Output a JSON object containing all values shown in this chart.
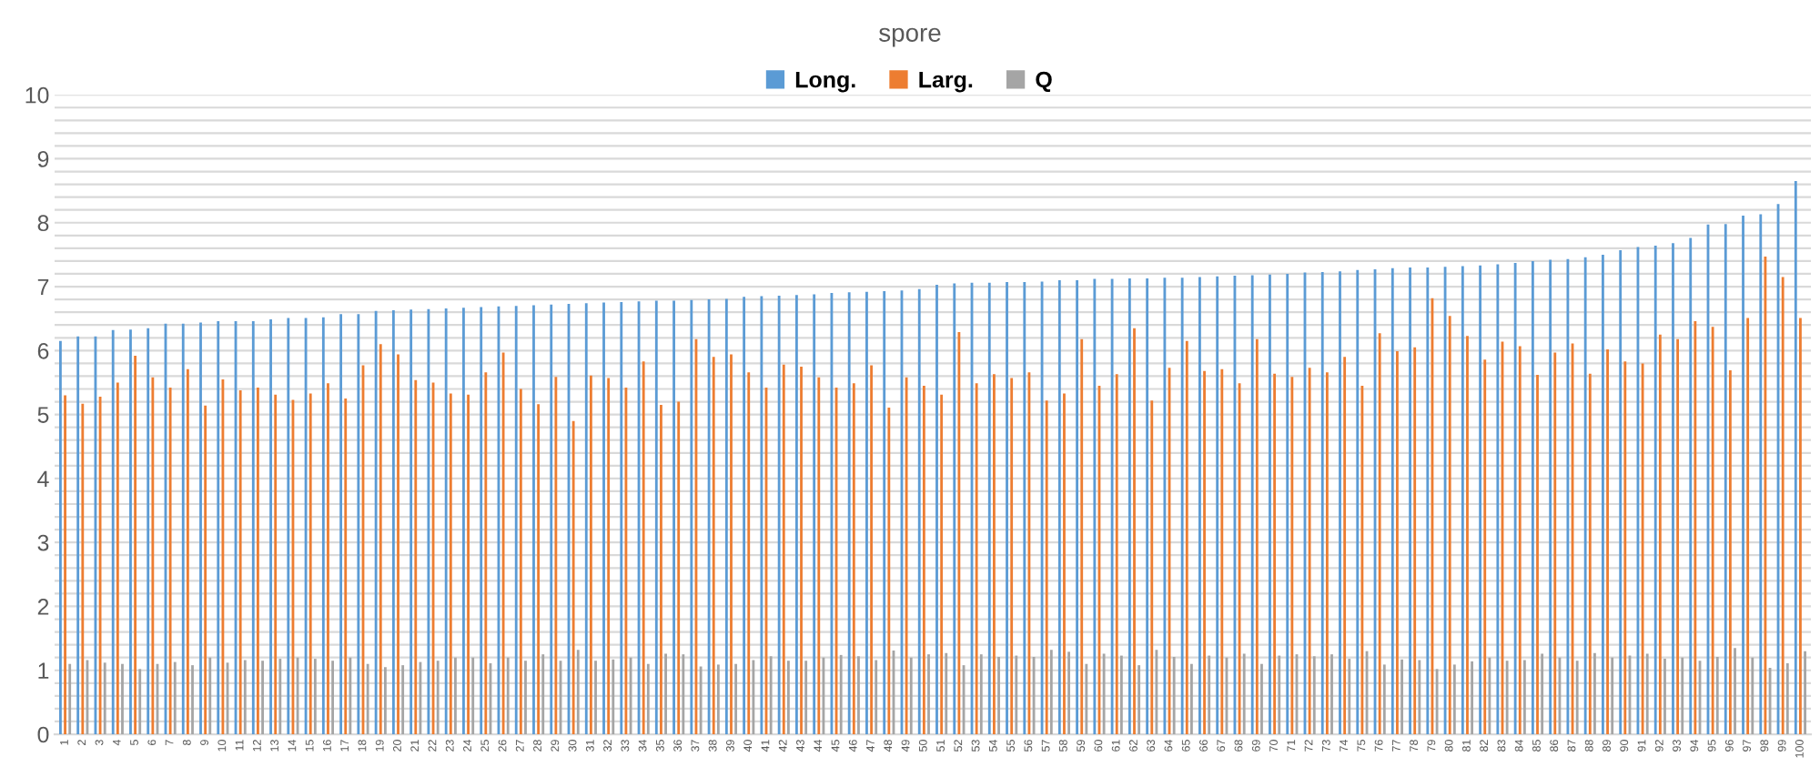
{
  "chart_data": {
    "type": "bar",
    "title": "spore",
    "categories": [
      "1",
      "2",
      "3",
      "4",
      "5",
      "6",
      "7",
      "8",
      "9",
      "10",
      "11",
      "12",
      "13",
      "14",
      "15",
      "16",
      "17",
      "18",
      "19",
      "20",
      "21",
      "22",
      "23",
      "24",
      "25",
      "26",
      "27",
      "28",
      "29",
      "30",
      "31",
      "32",
      "33",
      "34",
      "35",
      "36",
      "37",
      "38",
      "39",
      "40",
      "41",
      "42",
      "43",
      "44",
      "45",
      "46",
      "47",
      "48",
      "49",
      "50",
      "51",
      "52",
      "53",
      "54",
      "55",
      "56",
      "57",
      "58",
      "59",
      "60",
      "61",
      "62",
      "63",
      "64",
      "65",
      "66",
      "67",
      "68",
      "69",
      "70",
      "71",
      "72",
      "73",
      "74",
      "75",
      "76",
      "77",
      "78",
      "79",
      "80",
      "81",
      "82",
      "83",
      "84",
      "85",
      "86",
      "87",
      "88",
      "89",
      "90",
      "91",
      "92",
      "93",
      "94",
      "95",
      "96",
      "97",
      "98",
      "99",
      "100"
    ],
    "series": [
      {
        "name": "Long.",
        "color": "#5b9bd5",
        "values": [
          6.15,
          6.22,
          6.22,
          6.32,
          6.33,
          6.35,
          6.42,
          6.42,
          6.44,
          6.46,
          6.46,
          6.46,
          6.49,
          6.51,
          6.51,
          6.52,
          6.57,
          6.57,
          6.62,
          6.63,
          6.64,
          6.65,
          6.66,
          6.67,
          6.68,
          6.69,
          6.7,
          6.71,
          6.72,
          6.73,
          6.74,
          6.75,
          6.76,
          6.77,
          6.78,
          6.78,
          6.79,
          6.8,
          6.81,
          6.84,
          6.85,
          6.86,
          6.87,
          6.88,
          6.9,
          6.91,
          6.92,
          6.93,
          6.94,
          6.96,
          7.03,
          7.05,
          7.06,
          7.06,
          7.07,
          7.07,
          7.08,
          7.1,
          7.1,
          7.12,
          7.12,
          7.13,
          7.13,
          7.14,
          7.14,
          7.15,
          7.16,
          7.17,
          7.18,
          7.19,
          7.2,
          7.22,
          7.23,
          7.24,
          7.26,
          7.27,
          7.29,
          7.3,
          7.3,
          7.31,
          7.32,
          7.33,
          7.35,
          7.37,
          7.4,
          7.42,
          7.43,
          7.46,
          7.5,
          7.57,
          7.62,
          7.64,
          7.68,
          7.76,
          7.97,
          7.98,
          8.11,
          8.13,
          8.29,
          8.65
        ]
      },
      {
        "name": "Larg.",
        "color": "#ed7d31",
        "values": [
          5.3,
          5.17,
          5.28,
          5.5,
          5.92,
          5.58,
          5.42,
          5.71,
          5.14,
          5.55,
          5.38,
          5.42,
          5.31,
          5.23,
          5.33,
          5.49,
          5.25,
          5.77,
          6.1,
          5.94,
          5.54,
          5.5,
          5.33,
          5.31,
          5.66,
          5.97,
          5.4,
          5.16,
          5.59,
          4.9,
          5.61,
          5.57,
          5.42,
          5.83,
          5.15,
          5.2,
          6.18,
          5.9,
          5.94,
          5.66,
          5.42,
          5.78,
          5.75,
          5.58,
          5.42,
          5.49,
          5.77,
          5.11,
          5.58,
          5.45,
          5.31,
          6.29,
          5.49,
          5.63,
          5.57,
          5.66,
          5.22,
          5.33,
          6.18,
          5.45,
          5.63,
          6.35,
          5.22,
          5.73,
          6.15,
          5.68,
          5.71,
          5.49,
          6.18,
          5.64,
          5.59,
          5.73,
          5.66,
          5.9,
          5.45,
          6.27,
          5.99,
          6.05,
          6.82,
          6.54,
          6.23,
          5.86,
          6.14,
          6.07,
          5.62,
          5.97,
          6.11,
          5.64,
          6.02,
          5.83,
          5.8,
          6.25,
          6.18,
          6.46,
          6.37,
          5.69,
          6.51,
          7.47,
          7.15,
          6.51
        ]
      },
      {
        "name": "Q",
        "color": "#a5a5a5",
        "values": [
          1.1,
          1.16,
          1.12,
          1.1,
          1.02,
          1.1,
          1.13,
          1.08,
          1.2,
          1.12,
          1.16,
          1.15,
          1.18,
          1.2,
          1.18,
          1.15,
          1.2,
          1.1,
          1.05,
          1.08,
          1.13,
          1.15,
          1.2,
          1.2,
          1.11,
          1.2,
          1.15,
          1.25,
          1.15,
          1.32,
          1.15,
          1.17,
          1.2,
          1.1,
          1.26,
          1.25,
          1.06,
          1.09,
          1.1,
          1.16,
          1.22,
          1.15,
          1.15,
          1.2,
          1.24,
          1.22,
          1.16,
          1.31,
          1.2,
          1.25,
          1.27,
          1.08,
          1.25,
          1.21,
          1.23,
          1.21,
          1.32,
          1.29,
          1.1,
          1.26,
          1.23,
          1.08,
          1.32,
          1.21,
          1.1,
          1.23,
          1.2,
          1.26,
          1.1,
          1.23,
          1.25,
          1.22,
          1.25,
          1.18,
          1.3,
          1.09,
          1.17,
          1.16,
          1.02,
          1.09,
          1.14,
          1.2,
          1.15,
          1.16,
          1.26,
          1.2,
          1.15,
          1.27,
          1.2,
          1.23,
          1.26,
          1.18,
          1.2,
          1.15,
          1.21,
          1.35,
          1.2,
          1.04,
          1.11,
          1.3
        ]
      }
    ],
    "ylim": [
      0,
      10
    ],
    "yticks": [
      0,
      {
        "value": 0.2,
        "label": null
      },
      {
        "value": 0.4,
        "label": null
      },
      {
        "value": 0.6,
        "label": null
      },
      {
        "value": 0.8,
        "label": null
      },
      1,
      {
        "value": 1.2,
        "label": null
      },
      {
        "value": 1.4,
        "label": null
      },
      {
        "value": 1.6,
        "label": null
      },
      {
        "value": 1.8,
        "label": null
      },
      2,
      {
        "value": 2.2,
        "label": null
      },
      {
        "value": 2.4,
        "label": null
      },
      {
        "value": 2.6,
        "label": null
      },
      {
        "value": 2.8,
        "label": null
      },
      3,
      {
        "value": 3.2,
        "label": null
      },
      {
        "value": 3.4,
        "label": null
      },
      {
        "value": 3.6,
        "label": null
      },
      {
        "value": 3.8,
        "label": null
      },
      4,
      {
        "value": 4.2,
        "label": null
      },
      {
        "value": 4.4,
        "label": null
      },
      {
        "value": 4.6,
        "label": null
      },
      {
        "value": 4.8,
        "label": null
      },
      5,
      {
        "value": 5.2,
        "label": null
      },
      {
        "value": 5.4,
        "label": null
      },
      {
        "value": 5.6,
        "label": null
      },
      {
        "value": 5.8,
        "label": null
      },
      6,
      {
        "value": 6.2,
        "label": null
      },
      {
        "value": 6.4,
        "label": null
      },
      {
        "value": 6.6,
        "label": null
      },
      {
        "value": 6.8,
        "label": null
      },
      7,
      {
        "value": 7.2,
        "label": null
      },
      {
        "value": 7.4,
        "label": null
      },
      {
        "value": 7.6,
        "label": null
      },
      {
        "value": 7.8,
        "label": null
      },
      8,
      {
        "value": 8.2,
        "label": null
      },
      {
        "value": 8.4,
        "label": null
      },
      {
        "value": 8.6,
        "label": null
      },
      {
        "value": 8.8,
        "label": null
      },
      9,
      {
        "value": 9.2,
        "label": null
      },
      {
        "value": 9.4,
        "label": null
      },
      {
        "value": 9.6,
        "label": null
      },
      {
        "value": 9.8,
        "label": null
      },
      10
    ],
    "grid": "y",
    "legend": "top"
  }
}
